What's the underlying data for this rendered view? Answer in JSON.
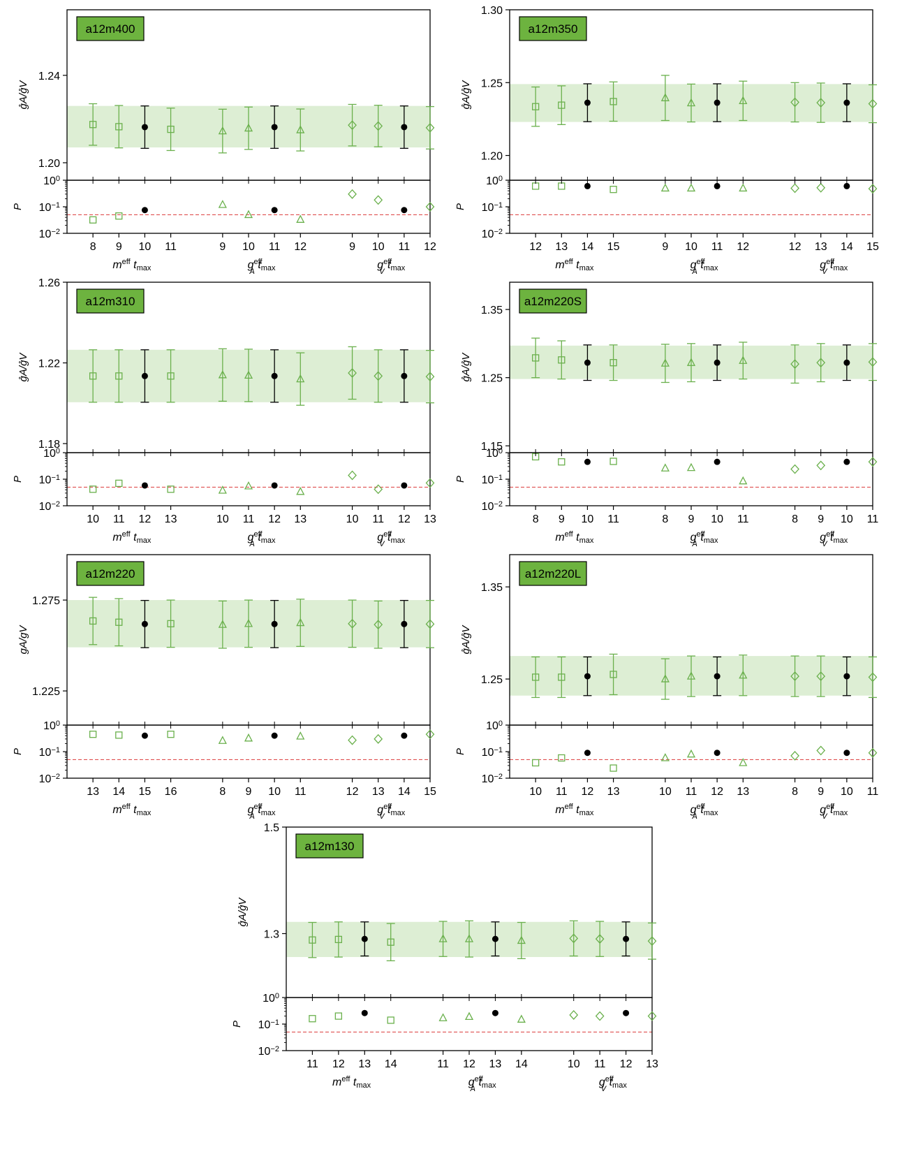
{
  "colors": {
    "fit": "#6ab04c",
    "band": "#ddeed4",
    "chosen": "#000000",
    "tag_fill": "#6db33f",
    "threshold": "#e05050"
  },
  "chart_data": [
    {
      "type": "scatter",
      "tag": "a12m400",
      "ylabel": "g̊A/g̊V",
      "ylim": [
        1.192,
        1.27
      ],
      "yticks": [
        "1.20",
        "1.24"
      ],
      "ytick_values": [
        1.2,
        1.24
      ],
      "band": [
        1.207,
        1.226
      ],
      "p_ylabel": "P",
      "p_ylim_exp": [
        -2,
        0
      ],
      "threshold_p": 0.05,
      "groups": [
        {
          "xlabel": "m^eff t_max",
          "marker": "square",
          "tmax": [
            "8",
            "9",
            "10",
            "11"
          ],
          "y": [
            1.2175,
            1.2165,
            1.2163,
            1.2153
          ],
          "err": [
            0.0095,
            0.0097,
            0.0097,
            0.0097
          ],
          "p": [
            0.032,
            0.045,
            0.075,
            null
          ],
          "chosen": 2
        },
        {
          "xlabel": "g_A^eff t_max",
          "marker": "triangle",
          "tmax": [
            "9",
            "10",
            "11",
            "12"
          ],
          "y": [
            1.2145,
            1.2158,
            1.2163,
            1.215
          ],
          "err": [
            0.01,
            0.0097,
            0.0097,
            0.0096
          ],
          "p": [
            0.12,
            0.05,
            0.075,
            0.033
          ],
          "chosen": 2
        },
        {
          "xlabel": "g_V^eff t_max",
          "marker": "diamond",
          "tmax": [
            "9",
            "10",
            "11",
            "12"
          ],
          "y": [
            1.2172,
            1.2168,
            1.2163,
            1.216
          ],
          "err": [
            0.0095,
            0.0095,
            0.0097,
            0.0097
          ],
          "p": [
            0.3,
            0.18,
            0.075,
            0.1
          ],
          "chosen": 2
        }
      ]
    },
    {
      "type": "scatter",
      "tag": "a12m350",
      "ylabel": "g̊A/g̊V",
      "ylim": [
        1.183,
        1.3
      ],
      "yticks": [
        "1.20",
        "1.25",
        "1.30"
      ],
      "ytick_values": [
        1.2,
        1.25,
        1.3
      ],
      "band": [
        1.223,
        1.249
      ],
      "p_ylabel": "P",
      "p_ylim_exp": [
        -2,
        0
      ],
      "threshold_p": 0.05,
      "groups": [
        {
          "xlabel": "m^eff t_max",
          "marker": "square",
          "tmax": [
            "12",
            "13",
            "14",
            "15"
          ],
          "y": [
            1.2335,
            1.2345,
            1.2362,
            1.237
          ],
          "err": [
            0.0135,
            0.0133,
            0.013,
            0.0135
          ],
          "p": [
            0.6,
            0.6,
            0.6,
            0.45
          ],
          "chosen": 2
        },
        {
          "xlabel": "g_A^eff t_max",
          "marker": "triangle",
          "tmax": [
            "9",
            "10",
            "11",
            "12"
          ],
          "y": [
            1.2395,
            1.236,
            1.2362,
            1.2375
          ],
          "err": [
            0.0155,
            0.013,
            0.013,
            0.0135
          ],
          "p": [
            0.5,
            0.5,
            0.6,
            0.5
          ],
          "chosen": 2
        },
        {
          "xlabel": "g_V^eff t_max",
          "marker": "diamond",
          "tmax": [
            "12",
            "13",
            "14",
            "15"
          ],
          "y": [
            1.2365,
            1.2362,
            1.2362,
            1.2355
          ],
          "err": [
            0.0135,
            0.0135,
            0.013,
            0.013
          ],
          "p": [
            0.5,
            0.52,
            0.6,
            0.48
          ],
          "chosen": 2
        }
      ]
    },
    {
      "type": "scatter",
      "tag": "a12m310",
      "ylabel": "g̊A/g̊V",
      "ylim": [
        1.1755,
        1.26
      ],
      "yticks": [
        "1.18",
        "1.22",
        "1.26"
      ],
      "ytick_values": [
        1.18,
        1.22,
        1.26
      ],
      "band": [
        1.2005,
        1.2265
      ],
      "p_ylabel": "P",
      "p_ylim_exp": [
        -2,
        0
      ],
      "threshold_p": 0.05,
      "groups": [
        {
          "xlabel": "m^eff t_max",
          "marker": "square",
          "tmax": [
            "10",
            "11",
            "12",
            "13"
          ],
          "y": [
            1.2135,
            1.2135,
            1.2135,
            1.2135
          ],
          "err": [
            0.013,
            0.013,
            0.013,
            0.013
          ],
          "p": [
            0.042,
            0.07,
            0.058,
            0.042
          ],
          "chosen": 2
        },
        {
          "xlabel": "g_A^eff t_max",
          "marker": "triangle",
          "tmax": [
            "10",
            "11",
            "12",
            "13"
          ],
          "y": [
            1.214,
            1.2138,
            1.2135,
            1.212
          ],
          "err": [
            0.013,
            0.013,
            0.013,
            0.013
          ],
          "p": [
            0.038,
            0.055,
            0.058,
            0.034
          ],
          "chosen": 2
        },
        {
          "xlabel": "g_V^eff t_max",
          "marker": "diamond",
          "tmax": [
            "10",
            "11",
            "12",
            "13"
          ],
          "y": [
            1.215,
            1.2135,
            1.2135,
            1.2132
          ],
          "err": [
            0.013,
            0.013,
            0.013,
            0.013
          ],
          "p": [
            0.14,
            0.042,
            0.058,
            0.072
          ],
          "chosen": 2
        }
      ]
    },
    {
      "type": "scatter",
      "tag": "a12m220S",
      "ylabel": "g̊A/g̊V",
      "ylim": [
        1.14,
        1.39
      ],
      "yticks": [
        "1.15",
        "1.25",
        "1.35"
      ],
      "ytick_values": [
        1.15,
        1.25,
        1.35
      ],
      "band": [
        1.248,
        1.297
      ],
      "p_ylabel": "P",
      "p_ylim_exp": [
        -2,
        0
      ],
      "threshold_p": 0.05,
      "groups": [
        {
          "xlabel": "m^eff t_max",
          "marker": "square",
          "tmax": [
            "8",
            "9",
            "10",
            "11"
          ],
          "y": [
            1.279,
            1.276,
            1.272,
            1.272
          ],
          "err": [
            0.029,
            0.028,
            0.026,
            0.026
          ],
          "p": [
            0.7,
            0.45,
            0.45,
            0.47
          ],
          "chosen": 2
        },
        {
          "xlabel": "g_A^eff t_max",
          "marker": "triangle",
          "tmax": [
            "8",
            "9",
            "10",
            "11"
          ],
          "y": [
            1.271,
            1.272,
            1.272,
            1.275
          ],
          "err": [
            0.028,
            0.028,
            0.026,
            0.027
          ],
          "p": [
            0.26,
            0.27,
            0.45,
            0.085
          ],
          "chosen": 2
        },
        {
          "xlabel": "g_V^eff t_max",
          "marker": "diamond",
          "tmax": [
            "8",
            "9",
            "10",
            "11"
          ],
          "y": [
            1.27,
            1.272,
            1.272,
            1.273
          ],
          "err": [
            0.028,
            0.028,
            0.026,
            0.027
          ],
          "p": [
            0.24,
            0.33,
            0.45,
            0.45
          ],
          "chosen": 2
        }
      ]
    },
    {
      "type": "scatter",
      "tag": "a12m220",
      "ylabel": "gA/gV",
      "ylim": [
        1.2062,
        1.3
      ],
      "yticks": [
        "1.225",
        "1.275"
      ],
      "ytick_values": [
        1.225,
        1.275
      ],
      "band": [
        1.249,
        1.275
      ],
      "p_ylabel": "P",
      "p_ylim_exp": [
        -2,
        0
      ],
      "threshold_p": 0.05,
      "groups": [
        {
          "xlabel": "m^eff t_max",
          "marker": "square",
          "tmax": [
            "13",
            "14",
            "15",
            "16"
          ],
          "y": [
            1.2635,
            1.2628,
            1.2618,
            1.262
          ],
          "err": [
            0.013,
            0.013,
            0.013,
            0.013
          ],
          "p": [
            0.45,
            0.42,
            0.4,
            0.45
          ],
          "chosen": 2
        },
        {
          "xlabel": "g_A^eff t_max",
          "marker": "triangle",
          "tmax": [
            "8",
            "9",
            "10",
            "11"
          ],
          "y": [
            1.2615,
            1.262,
            1.2618,
            1.2625
          ],
          "err": [
            0.013,
            0.013,
            0.013,
            0.013
          ],
          "p": [
            0.26,
            0.32,
            0.4,
            0.38
          ],
          "chosen": 2
        },
        {
          "xlabel": "g_V^eff t_max",
          "marker": "diamond",
          "tmax": [
            "12",
            "13",
            "14",
            "15"
          ],
          "y": [
            1.262,
            1.2615,
            1.2618,
            1.2618
          ],
          "err": [
            0.013,
            0.013,
            0.013,
            0.013
          ],
          "p": [
            0.27,
            0.3,
            0.4,
            0.45
          ],
          "chosen": 2
        }
      ]
    },
    {
      "type": "scatter",
      "tag": "a12m220L",
      "ylabel": "g̊A/g̊V",
      "ylim": [
        1.2,
        1.385
      ],
      "yticks": [
        "1.25",
        "1.35"
      ],
      "ytick_values": [
        1.25,
        1.35
      ],
      "band": [
        1.232,
        1.275
      ],
      "p_ylabel": "P",
      "p_ylim_exp": [
        -2,
        0
      ],
      "threshold_p": 0.05,
      "groups": [
        {
          "xlabel": "m^eff t_max",
          "marker": "square",
          "tmax": [
            "10",
            "11",
            "12",
            "13"
          ],
          "y": [
            1.252,
            1.252,
            1.253,
            1.255
          ],
          "err": [
            0.022,
            0.022,
            0.021,
            0.022
          ],
          "p": [
            0.038,
            0.058,
            0.09,
            0.024
          ],
          "chosen": 2
        },
        {
          "xlabel": "g_A^eff t_max",
          "marker": "triangle",
          "tmax": [
            "10",
            "11",
            "12",
            "13"
          ],
          "y": [
            1.25,
            1.253,
            1.253,
            1.254
          ],
          "err": [
            0.022,
            0.022,
            0.021,
            0.022
          ],
          "p": [
            0.058,
            0.08,
            0.09,
            0.038
          ],
          "chosen": 2
        },
        {
          "xlabel": "g_V^eff t_max",
          "marker": "diamond",
          "tmax": [
            "8",
            "9",
            "10",
            "11"
          ],
          "y": [
            1.253,
            1.253,
            1.253,
            1.252
          ],
          "err": [
            0.022,
            0.022,
            0.021,
            0.022
          ],
          "p": [
            0.07,
            0.11,
            0.09,
            0.09
          ],
          "chosen": 2
        }
      ]
    },
    {
      "type": "scatter",
      "tag": "a12m130",
      "ylabel": "g̊A/g̊V",
      "ylim": [
        1.18,
        1.5
      ],
      "yticks": [
        "1.3",
        "1.5"
      ],
      "ytick_values": [
        1.3,
        1.5
      ],
      "band": [
        1.256,
        1.322
      ],
      "p_ylabel": "P",
      "p_ylim_exp": [
        -2,
        0
      ],
      "threshold_p": 0.05,
      "groups": [
        {
          "xlabel": "m^eff t_max",
          "marker": "square",
          "tmax": [
            "11",
            "12",
            "13",
            "14"
          ],
          "y": [
            1.288,
            1.289,
            1.29,
            1.284
          ],
          "err": [
            0.033,
            0.033,
            0.032,
            0.035
          ],
          "p": [
            0.16,
            0.2,
            0.26,
            0.14
          ],
          "chosen": 2
        },
        {
          "xlabel": "g_A^eff t_max",
          "marker": "triangle",
          "tmax": [
            "11",
            "12",
            "13",
            "14"
          ],
          "y": [
            1.29,
            1.29,
            1.29,
            1.287
          ],
          "err": [
            0.033,
            0.034,
            0.032,
            0.034
          ],
          "p": [
            0.17,
            0.19,
            0.26,
            0.15
          ],
          "chosen": 2
        },
        {
          "xlabel": "g_V^eff t_max",
          "marker": "diamond",
          "tmax": [
            "10",
            "11",
            "12",
            "13"
          ],
          "y": [
            1.291,
            1.29,
            1.29,
            1.286
          ],
          "err": [
            0.033,
            0.033,
            0.032,
            0.034
          ],
          "p": [
            0.22,
            0.2,
            0.26,
            0.2
          ],
          "chosen": 2
        }
      ]
    }
  ]
}
